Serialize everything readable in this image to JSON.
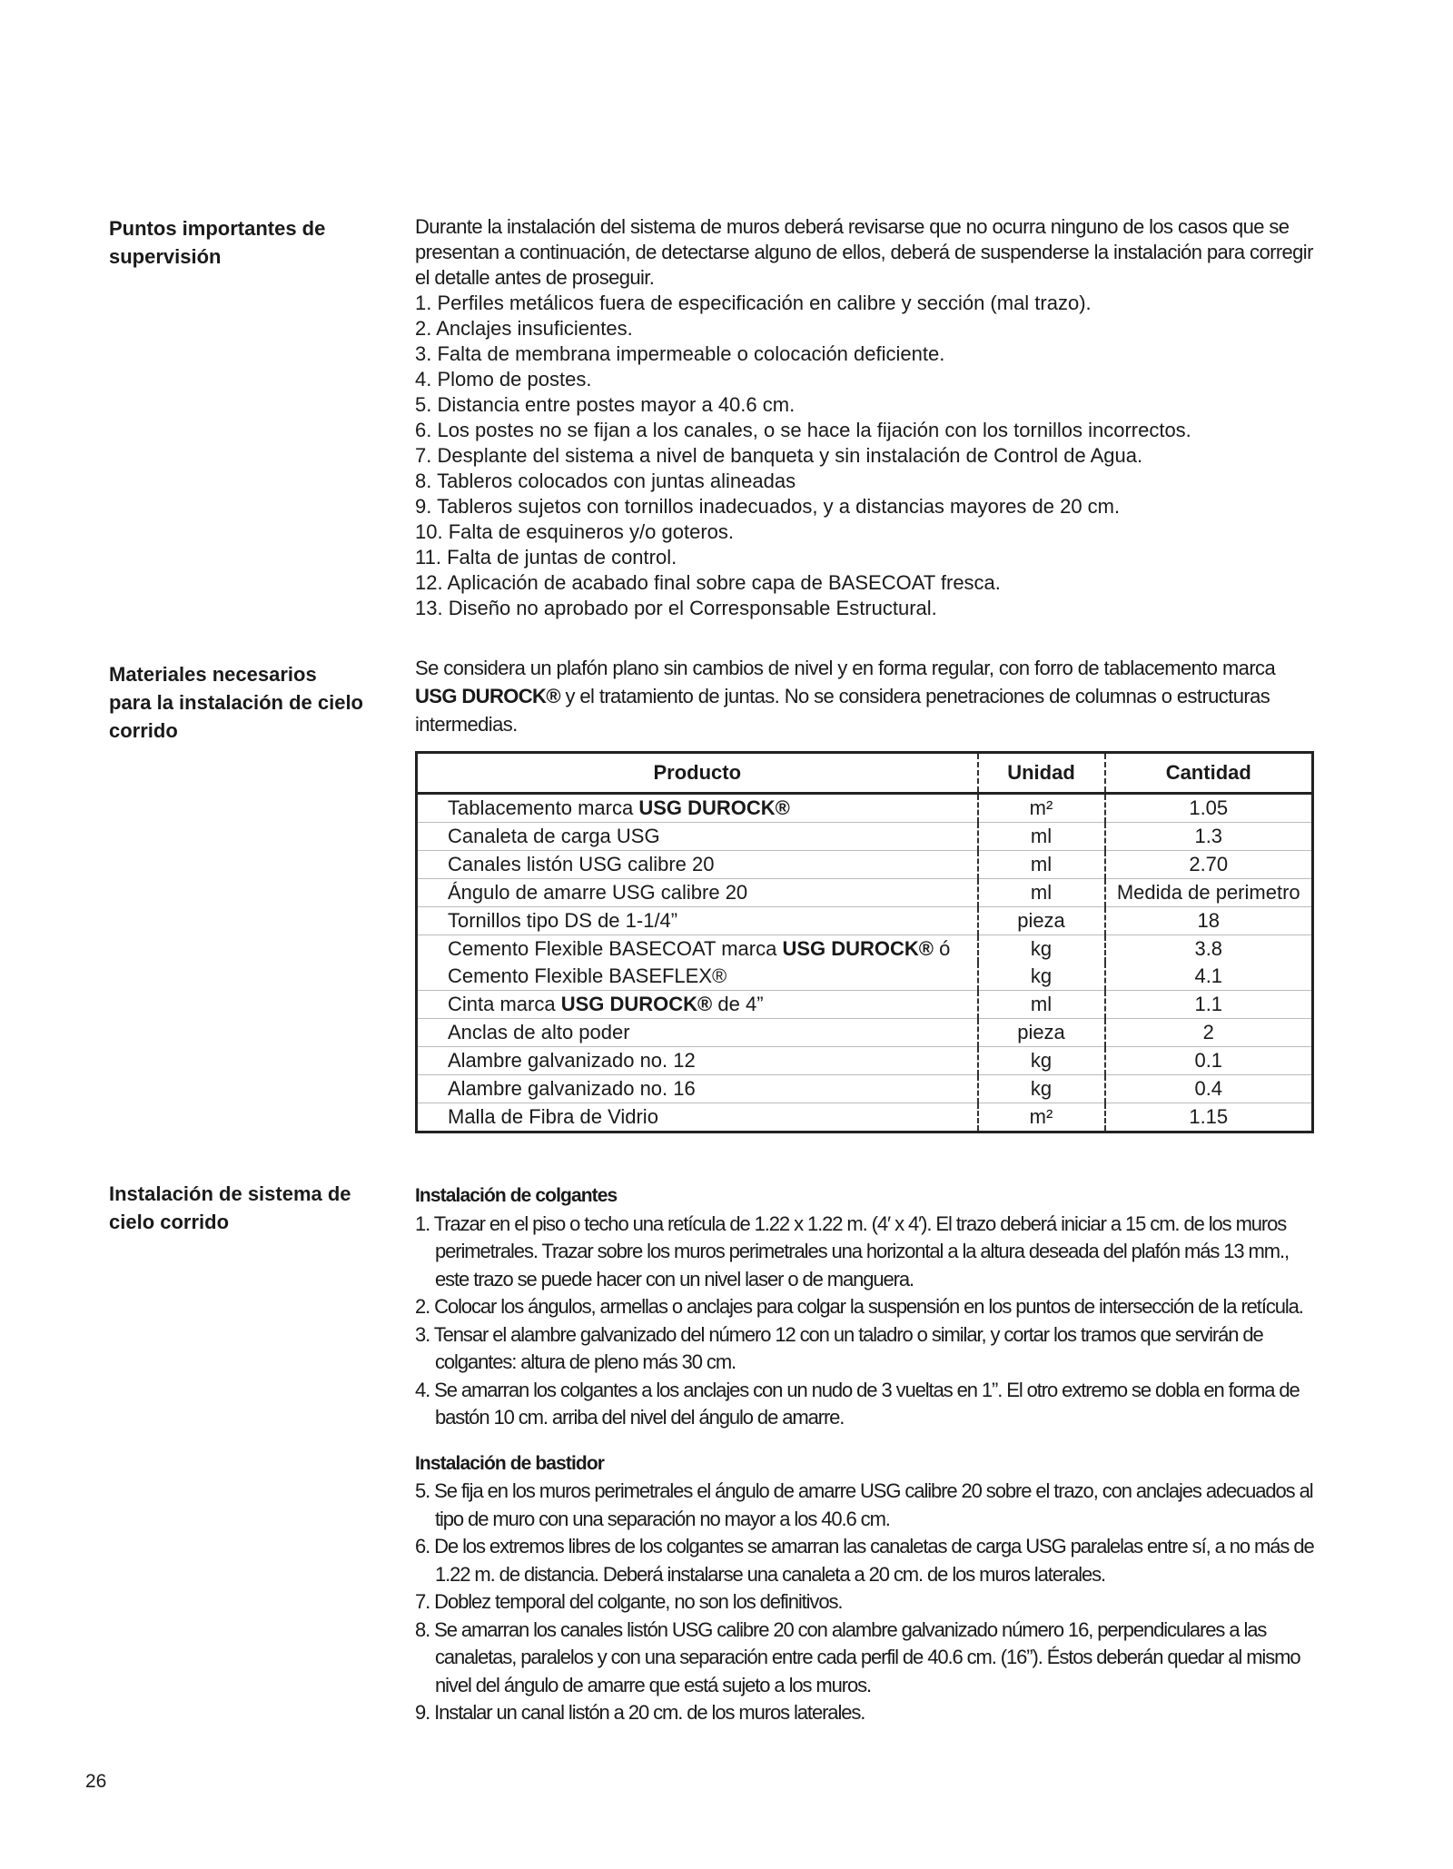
{
  "page_number": "26",
  "section1": {
    "title": "Puntos importantes de supervisión",
    "intro": "Durante la instalación del sistema de muros deberá revisarse que no ocurra ninguno de los casos que se presentan a continuación, de detectarse alguno de ellos, deberá de suspenderse la instalación para corregir el detalle antes de proseguir.",
    "items": [
      "1. Perfiles metálicos fuera de especificación en calibre y sección (mal trazo).",
      "2. Anclajes insuficientes.",
      "3. Falta de membrana impermeable o colocación deficiente.",
      "4. Plomo de postes.",
      "5. Distancia entre postes mayor a 40.6 cm.",
      "6. Los postes no se fijan a los canales, o se hace la fijación con los tornillos incorrectos.",
      "7. Desplante del sistema a nivel de banqueta y sin instalación de Control de Agua.",
      "8. Tableros colocados con juntas alineadas",
      "9. Tableros sujetos con tornillos inadecuados, y a distancias mayores de 20 cm.",
      "10. Falta de esquineros y/o goteros.",
      "11. Falta de juntas de control.",
      "12. Aplicación de acabado final sobre capa de BASECOAT fresca.",
      "13. Diseño no aprobado por el Corresponsable Estructural."
    ]
  },
  "section2": {
    "title": "Materiales necesarios para la instalación de cielo corrido",
    "intro_a": "Se considera un plafón plano sin cambios de nivel y en forma regular, con forro de tablacemento marca ",
    "intro_brand": "USG DUROCK®",
    "intro_b": " y el tratamiento de juntas. No se considera penetraciones de columnas o estructuras intermedias.",
    "table": {
      "headers": [
        "Producto",
        "Unidad",
        "Cantidad"
      ],
      "rows": [
        {
          "pre": "Tablacemento marca ",
          "bold": "USG DUROCK®",
          "post": "",
          "unit": "m²",
          "qty": "1.05"
        },
        {
          "pre": "Canaleta de carga USG",
          "bold": "",
          "post": "",
          "unit": "ml",
          "qty": "1.3"
        },
        {
          "pre": "Canales listón USG calibre 20",
          "bold": "",
          "post": "",
          "unit": "ml",
          "qty": "2.70"
        },
        {
          "pre": "Ángulo de amarre USG calibre 20",
          "bold": "",
          "post": "",
          "unit": "ml",
          "qty": "Medida de perimetro"
        },
        {
          "pre": "Tornillos tipo DS de 1-1/4”",
          "bold": "",
          "post": "",
          "unit": "pieza",
          "qty": "18"
        },
        {
          "pre": "Cemento Flexible BASECOAT marca ",
          "bold": "USG DUROCK®",
          "post": " ó",
          "unit": "kg",
          "qty": "3.8"
        },
        {
          "pre": "Cemento Flexible BASEFLEX®",
          "bold": "",
          "post": "",
          "unit": "kg",
          "qty": "4.1"
        },
        {
          "pre": "Cinta marca ",
          "bold": "USG DUROCK®",
          "post": " de 4”",
          "unit": "ml",
          "qty": "1.1"
        },
        {
          "pre": "Anclas de alto poder",
          "bold": "",
          "post": "",
          "unit": "pieza",
          "qty": "2"
        },
        {
          "pre": "Alambre galvanizado no. 12",
          "bold": "",
          "post": "",
          "unit": "kg",
          "qty": "0.1"
        },
        {
          "pre": "Alambre galvanizado no. 16",
          "bold": "",
          "post": "",
          "unit": "kg",
          "qty": "0.4"
        },
        {
          "pre": "Malla de Fibra de Vidrio",
          "bold": "",
          "post": "",
          "unit": "m²",
          "qty": "1.15"
        }
      ]
    }
  },
  "section3": {
    "title": "Instalación de sistema de cielo corrido",
    "sub1": "Instalación de colgantes",
    "sub1_items": [
      "1. Trazar en el piso o techo una retícula de 1.22 x 1.22 m. (4′ x 4′). El trazo deberá iniciar a 15 cm. de los muros perimetrales. Trazar sobre los muros perimetrales una horizontal a la altura deseada del plafón más 13 mm., este trazo se puede hacer con un nivel laser o de manguera.",
      "2. Colocar los ángulos, armellas o anclajes para colgar la suspensión en los puntos de intersección de la retícula.",
      "3. Tensar el alambre galvanizado del número 12 con un taladro o similar, y cortar los tramos que servirán de colgantes: altura de pleno más 30 cm.",
      "4. Se amarran los colgantes a los anclajes con un nudo de 3 vueltas en 1”. El otro extremo se dobla en forma de bastón 10 cm. arriba del nivel del ángulo de amarre."
    ],
    "sub2": "Instalación de bastidor",
    "sub2_items": [
      "5. Se fija en los muros perimetrales el ángulo de amarre USG calibre 20 sobre el trazo, con anclajes adecuados al tipo de muro con una separación no mayor a los 40.6 cm.",
      "6. De los extremos libres de los colgantes se amarran las canaletas de carga USG paralelas entre sí, a no más de 1.22 m. de distancia. Deberá instalarse una canaleta a 20 cm. de los muros laterales.",
      "7. Doblez temporal del colgante, no son los definitivos.",
      "8. Se amarran los canales listón USG calibre 20 con alambre galvanizado número 16, perpendiculares a las canaletas, paralelos y con una separación entre cada perfil de 40.6 cm. (16”). Éstos deberán quedar al mismo nivel del ángulo de amarre que está sujeto a los muros.",
      "9. Instalar un canal listón a 20 cm. de los muros laterales."
    ]
  }
}
